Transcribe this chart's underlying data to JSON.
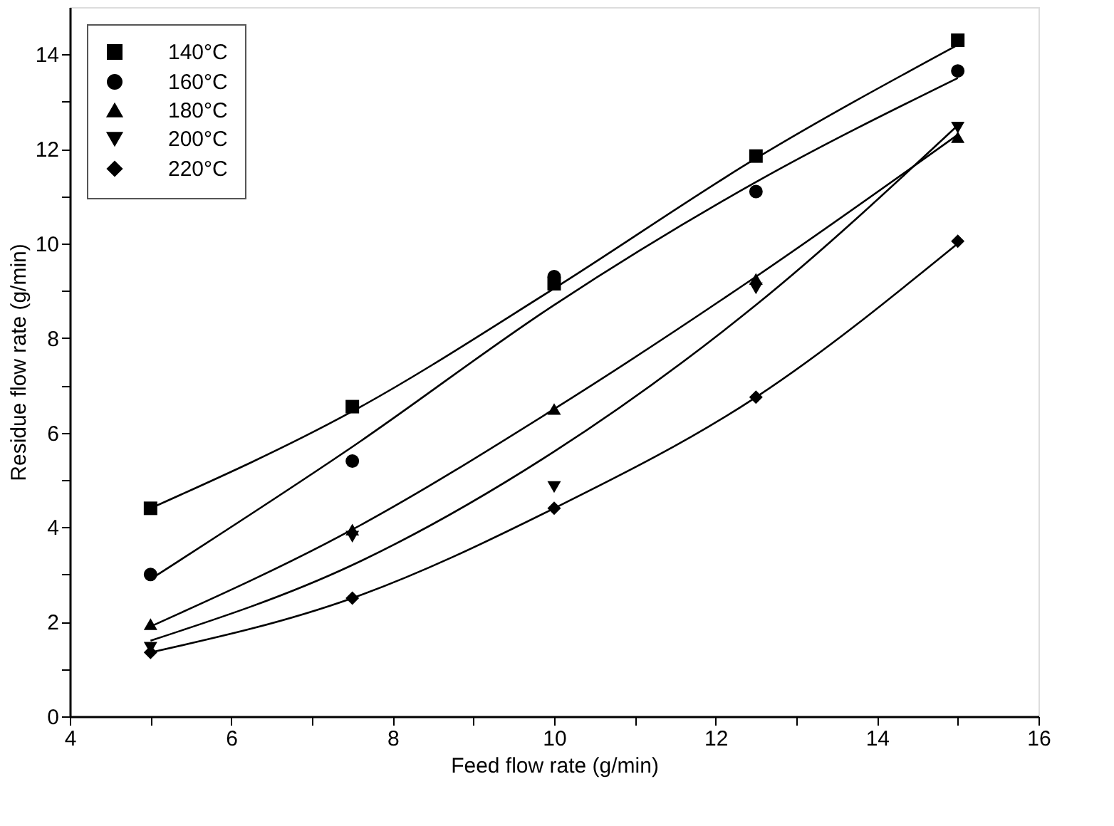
{
  "chart_data": {
    "type": "scatter",
    "xlabel": "Feed flow rate (g/min)",
    "ylabel": "Residue flow rate (g/min)",
    "xlim": [
      4,
      16
    ],
    "ylim": [
      0,
      15
    ],
    "xticks": [
      4,
      {
        "value": 5,
        "label": null
      },
      6,
      {
        "value": 7,
        "label": null
      },
      8,
      {
        "value": 9,
        "label": null
      },
      10,
      {
        "value": 11,
        "label": null
      },
      12,
      {
        "value": 13,
        "label": null
      },
      14,
      {
        "value": 15,
        "label": null
      },
      16
    ],
    "yticks": [
      0,
      {
        "value": 1,
        "label": null
      },
      2,
      {
        "value": 3,
        "label": null
      },
      4,
      {
        "value": 5,
        "label": null
      },
      6,
      {
        "value": 7,
        "label": null
      },
      8,
      {
        "value": 9,
        "label": null
      },
      10,
      {
        "value": 11,
        "label": null
      },
      12,
      {
        "value": 13,
        "label": null
      },
      14
    ],
    "x": [
      5,
      7.5,
      10,
      12.5,
      15
    ],
    "grid": false,
    "legend": "top left",
    "series": [
      {
        "name": "140°C",
        "color": "#000000",
        "marker": "square",
        "values": [
          4.4,
          6.55,
          9.15,
          11.85,
          14.3
        ]
      },
      {
        "name": "160°C",
        "color": "#000000",
        "marker": "circle",
        "values": [
          3.0,
          5.4,
          9.3,
          11.1,
          13.65
        ]
      },
      {
        "name": "180°C",
        "color": "#000000",
        "marker": "triangle",
        "values": [
          1.95,
          3.95,
          6.5,
          9.25,
          12.25
        ]
      },
      {
        "name": "200°C",
        "color": "#000000",
        "marker": "triangle-down",
        "values": [
          1.45,
          3.8,
          4.85,
          9.05,
          12.45
        ]
      },
      {
        "name": "220°C",
        "color": "#000000",
        "marker": "diamond",
        "values": [
          1.35,
          2.5,
          4.4,
          6.75,
          10.05
        ]
      },
      {
        "type": "line",
        "color": "#000000",
        "marker": "none",
        "line_style": "solid",
        "x": [
          5,
          7.5,
          10,
          12.5,
          15
        ],
        "values": [
          4.4,
          6.45,
          9.05,
          11.8,
          14.2
        ]
      },
      {
        "type": "line",
        "color": "#000000",
        "marker": "none",
        "line_style": "solid",
        "x": [
          5,
          7.5,
          10,
          12.5,
          15
        ],
        "values": [
          2.9,
          5.7,
          8.7,
          11.3,
          13.5
        ]
      },
      {
        "type": "line",
        "color": "#000000",
        "marker": "none",
        "line_style": "solid",
        "x": [
          5,
          7.5,
          10,
          12.5,
          15
        ],
        "values": [
          1.9,
          3.95,
          6.5,
          9.3,
          12.3
        ]
      },
      {
        "type": "line",
        "color": "#000000",
        "marker": "none",
        "line_style": "solid",
        "x": [
          5,
          7.5,
          10,
          12.5,
          15
        ],
        "values": [
          1.6,
          3.2,
          5.6,
          8.7,
          12.5
        ]
      },
      {
        "type": "line",
        "color": "#000000",
        "marker": "none",
        "line_style": "solid",
        "x": [
          5,
          7.5,
          10,
          12.5,
          15
        ],
        "values": [
          1.35,
          2.5,
          4.4,
          6.75,
          10.0
        ]
      }
    ]
  }
}
